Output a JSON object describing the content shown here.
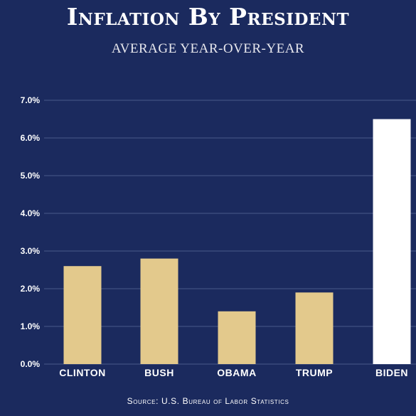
{
  "header": {
    "title": "Inflation By President",
    "subtitle": "AVERAGE YEAR-OVER-YEAR"
  },
  "footer": {
    "source": "Source: U.S. Bureau of Labor Statistics"
  },
  "colors": {
    "background": "#1b2a5e",
    "bar_default": "#e3c98c",
    "bar_highlight": "#ffffff",
    "gridline": "#4a5a8a",
    "text": "#ffffff"
  },
  "chart_data": {
    "type": "bar",
    "title": "Inflation By President",
    "subtitle": "AVERAGE YEAR-OVER-YEAR",
    "xlabel": "",
    "ylabel": "",
    "categories": [
      "CLINTON",
      "BUSH",
      "OBAMA",
      "TRUMP",
      "BIDEN"
    ],
    "values": [
      2.6,
      2.8,
      1.4,
      1.9,
      6.5
    ],
    "highlight": [
      "BIDEN"
    ],
    "y_ticks": [
      0,
      1,
      2,
      3,
      4,
      5,
      6,
      7
    ],
    "y_tick_labels": [
      "0.0%",
      "1.0%",
      "2.0%",
      "3.0%",
      "4.0%",
      "5.0%",
      "6.0%",
      "7.0%"
    ],
    "ylim": [
      0,
      7
    ],
    "grid": true,
    "legend": "none"
  }
}
